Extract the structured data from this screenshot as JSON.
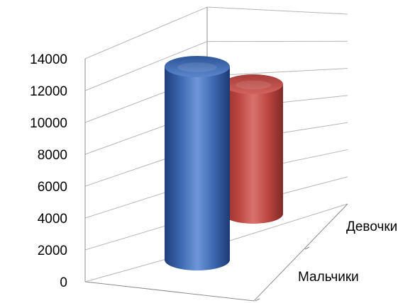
{
  "chart_data": {
    "type": "bar",
    "style": "3d-cylinder",
    "categories": [
      "Мальчики",
      "Девочки"
    ],
    "series": [
      {
        "values": [
          12500,
          null
        ],
        "color": "#4472c4"
      },
      {
        "values": [
          null,
          7600
        ],
        "color": "#c0504d"
      }
    ],
    "ylim": [
      0,
      14000
    ],
    "yticks": [
      "0",
      "2000",
      "4000",
      "6000",
      "8000",
      "10000",
      "12000",
      "14000"
    ],
    "grid": true,
    "legend": "none"
  }
}
